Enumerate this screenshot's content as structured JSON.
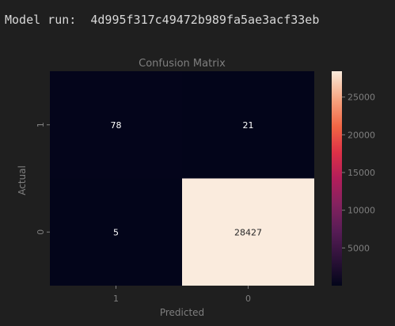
{
  "run": {
    "label": "Model run:",
    "id": "4d995f317c49472b989fa5ae3acf33eb"
  },
  "chart_data": {
    "type": "heatmap",
    "title": "Confusion Matrix",
    "xlabel": "Predicted",
    "ylabel": "Actual",
    "x_categories": [
      "1",
      "0"
    ],
    "y_categories": [
      "1",
      "0"
    ],
    "values": [
      [
        78,
        21
      ],
      [
        5,
        28427
      ]
    ],
    "colormap": "rocket",
    "colorbar": {
      "min": 0,
      "max": 28427,
      "ticks": [
        5000,
        10000,
        15000,
        20000,
        25000
      ]
    },
    "colors": {
      "low": "#03051a",
      "high": "#faebdd",
      "text_light": "#ffffff",
      "text_dark": "#262626",
      "axis_text": "#7f7f7f",
      "title_text": "#7f7f7f"
    }
  }
}
